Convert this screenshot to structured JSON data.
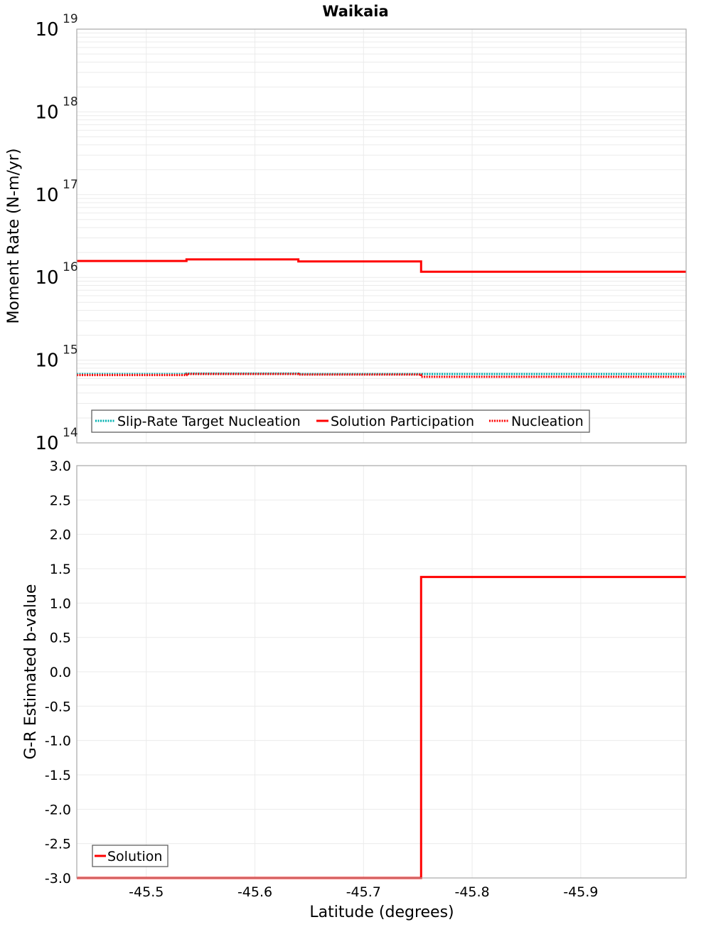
{
  "chart_data": [
    {
      "type": "line",
      "title": "Waikaia",
      "xlabel": "Latitude (degrees)",
      "ylabel": "Moment Rate (N-m/yr)",
      "yscale": "log",
      "ylim": [
        100000000000000.0,
        1e+19
      ],
      "xlim": [
        -45.436,
        -45.997
      ],
      "x_reversed_direction_note": "values decrease left to right",
      "y_ticks": [
        "10^14",
        "10^15",
        "10^16",
        "10^17",
        "10^18",
        "10^19"
      ],
      "x_ticks": [
        "-45.5",
        "-45.6",
        "-45.7",
        "-45.8",
        "-45.9"
      ],
      "grid": true,
      "legend_position": "lower-left inside",
      "x_bin_edges": [
        -45.436,
        -45.537,
        -45.64,
        -45.753,
        -45.875,
        -45.997
      ],
      "series": [
        {
          "name": "Slip-Rate Target Nucleation",
          "color": "#00b0b0",
          "style": "dotted",
          "values": [
            680000000000000.0,
            690000000000000.0,
            680000000000000.0,
            680000000000000.0,
            680000000000000.0
          ]
        },
        {
          "name": "Solution Participation",
          "color": "#ff0000",
          "style": "solid",
          "values": [
            1.58e+16,
            1.65e+16,
            1.56e+16,
            1.17e+16,
            1.17e+16
          ]
        },
        {
          "name": "Nucleation",
          "color": "#ff0000",
          "style": "dotted",
          "values": [
            660000000000000.0,
            680000000000000.0,
            670000000000000.0,
            630000000000000.0,
            630000000000000.0
          ]
        }
      ]
    },
    {
      "type": "line",
      "title": "",
      "xlabel": "Latitude (degrees)",
      "ylabel": "G-R Estimated b-value",
      "ylim": [
        -3.0,
        3.0
      ],
      "xlim": [
        -45.436,
        -45.997
      ],
      "y_ticks": [
        "3.0",
        "2.5",
        "2.0",
        "1.5",
        "1.0",
        "0.5",
        "0.0",
        "-0.5",
        "-1.0",
        "-1.5",
        "-2.0",
        "-2.5",
        "-3.0"
      ],
      "x_ticks": [
        "-45.5",
        "-45.6",
        "-45.7",
        "-45.8",
        "-45.9"
      ],
      "grid": true,
      "legend_position": "lower-left inside",
      "x_bin_edges": [
        -45.436,
        -45.537,
        -45.64,
        -45.753,
        -45.875,
        -45.997
      ],
      "series": [
        {
          "name": "Solution",
          "color": "#ff0000",
          "style": "solid",
          "values": [
            -3.0,
            -3.0,
            -3.0,
            1.38,
            1.38
          ]
        }
      ]
    }
  ],
  "labels": {
    "title": "Waikaia",
    "top_ylabel": "Moment Rate (N-m/yr)",
    "bottom_ylabel": "G-R Estimated b-value",
    "xlabel": "Latitude (degrees)",
    "legend_top": [
      "Slip-Rate Target Nucleation",
      "Solution Participation",
      "Nucleation"
    ],
    "legend_bottom": [
      "Solution"
    ]
  }
}
